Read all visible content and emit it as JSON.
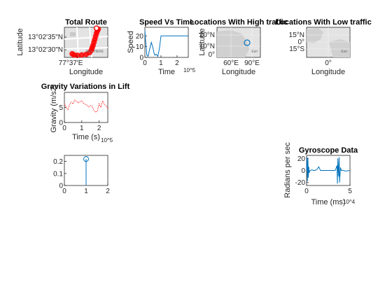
{
  "colors": {
    "line": "#0072BD",
    "route": "#FF0000",
    "map_land": "#d8d8d8",
    "map_bg": "#e3e3e3"
  },
  "chart_data": [
    {
      "id": "total-route",
      "type": "scatter",
      "title": "Total Route",
      "xlabel": "Longitude",
      "ylabel": "Latitude",
      "xticks": [
        "77°37'E"
      ],
      "yticks": [
        "13°02'35\"N",
        "13°02'30\"N"
      ],
      "basemap_text": "Esri, HERE",
      "route": [
        [
          0.18,
          0.88
        ],
        [
          0.22,
          0.92
        ],
        [
          0.3,
          0.93
        ],
        [
          0.4,
          0.92
        ],
        [
          0.5,
          0.9
        ],
        [
          0.58,
          0.84
        ],
        [
          0.62,
          0.76
        ],
        [
          0.64,
          0.68
        ],
        [
          0.66,
          0.6
        ],
        [
          0.68,
          0.5
        ],
        [
          0.7,
          0.4
        ],
        [
          0.72,
          0.3
        ],
        [
          0.74,
          0.2
        ],
        [
          0.76,
          0.12
        ],
        [
          0.78,
          0.06
        ],
        [
          0.74,
          0.03
        ]
      ]
    },
    {
      "id": "speed",
      "type": "line",
      "title": "Speed Vs Time",
      "xlabel": "Time",
      "ylabel": "Speed",
      "x_exponent": "10^5",
      "xlim": [
        0,
        2.7
      ],
      "ylim": [
        0,
        28
      ],
      "xticks": [
        0,
        1,
        2
      ],
      "yticks": [
        0,
        10,
        20
      ],
      "x": [
        0,
        0.05,
        0.12,
        0.2,
        0.3,
        0.4,
        0.5,
        0.55,
        0.62,
        0.7,
        0.8,
        0.9,
        1.0,
        1.1,
        1.2,
        1.4,
        1.7,
        2.0,
        2.4,
        2.7
      ],
      "y": [
        25,
        15,
        2,
        1,
        8,
        14,
        9,
        5,
        2,
        3,
        1,
        8,
        20,
        20,
        20,
        20,
        20,
        20,
        20,
        20
      ]
    },
    {
      "id": "high-traffic",
      "type": "scatter",
      "title": "Locations With High traffic",
      "xlabel": "Longitude",
      "ylabel": "Latitude",
      "xticks": [
        "60°E",
        "90°E"
      ],
      "yticks": [
        "20°N",
        "10°N",
        "0°"
      ],
      "basemap_text": "Esri",
      "points": [
        [
          78,
          13
        ]
      ]
    },
    {
      "id": "low-traffic",
      "type": "scatter",
      "title": "Locations With Low traffic",
      "xlabel": "Longitude",
      "ylabel": "Latitude",
      "xticks": [
        "0°"
      ],
      "yticks": [
        "15°N",
        "0°",
        "15°S"
      ],
      "basemap_text": "Esri",
      "points": []
    },
    {
      "id": "gravity",
      "type": "line",
      "title": "Gravity Variations in Lift",
      "xlabel": "Time (s)",
      "ylabel": "Gravity (m/s2)",
      "x_exponent": "10^5",
      "xlim": [
        0,
        2.5
      ],
      "ylim": [
        0,
        10
      ],
      "xticks": [
        0,
        1,
        2
      ],
      "yticks": [
        0,
        5
      ],
      "x": [
        0,
        0.1,
        0.2,
        0.3,
        0.4,
        0.5,
        0.6,
        0.7,
        0.8,
        0.9,
        1.0,
        1.1,
        1.2,
        1.3,
        1.4,
        1.5,
        1.6,
        1.7,
        1.8,
        1.9,
        2.0,
        2.1,
        2.2,
        2.3,
        2.4,
        2.5
      ],
      "y": [
        6.2,
        5.0,
        4.2,
        6.0,
        6.8,
        6.2,
        7.5,
        7.0,
        6.5,
        6.9,
        7.2,
        6.4,
        6.0,
        5.8,
        5.2,
        5.6,
        5.4,
        4.0,
        3.4,
        3.8,
        6.2,
        5.0,
        7.2,
        6.0,
        5.6,
        4.6
      ]
    },
    {
      "id": "stem",
      "type": "stem",
      "title": "",
      "xlabel": "",
      "ylabel": "",
      "xlim": [
        0,
        2
      ],
      "ylim": [
        0,
        0.25
      ],
      "xticks": [
        0,
        1,
        2
      ],
      "yticks": [
        0,
        0.1,
        0.2
      ],
      "x": [
        1
      ],
      "y": [
        0.22
      ]
    },
    {
      "id": "gyroscope",
      "type": "line",
      "title": "Gyroscope Data",
      "xlabel": "Time (ms)",
      "ylabel": "Radians per sec",
      "x_exponent": "10^4",
      "xlim": [
        0,
        5
      ],
      "ylim": [
        -25,
        25
      ],
      "xticks": [
        0,
        5
      ],
      "yticks": [
        -20,
        0,
        20
      ],
      "x": [
        0,
        0.05,
        0.1,
        0.15,
        0.2,
        0.25,
        0.3,
        0.4,
        0.6,
        0.8,
        1.0,
        1.2,
        1.4,
        1.5,
        1.6,
        1.8,
        2.0,
        2.5,
        3.0,
        3.3,
        3.5,
        3.55,
        3.6,
        3.7,
        3.75,
        3.8,
        3.9,
        4.0,
        4.2,
        4.5,
        5.0
      ],
      "y": [
        0,
        22,
        -18,
        20,
        -12,
        6,
        -4,
        0,
        1,
        0,
        0,
        2,
        6,
        3,
        0,
        0,
        0,
        0,
        0,
        0,
        8,
        -22,
        20,
        -10,
        22,
        -20,
        5,
        0,
        0,
        -1,
        0
      ]
    }
  ]
}
